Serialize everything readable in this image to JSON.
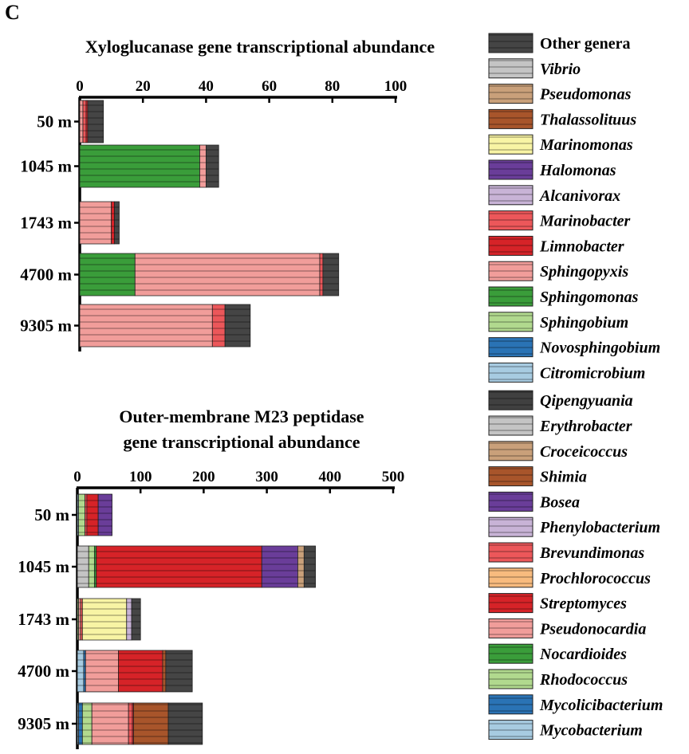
{
  "panel_label": "C",
  "chart_data": [
    {
      "type": "bar",
      "orientation": "horizontal",
      "stacked": true,
      "title": "Xyloglucanase gene transcriptional abundance",
      "title_lines": [
        "Xyloglucanase gene transcriptional abundance"
      ],
      "xlim": [
        0,
        100
      ],
      "xticks": [
        "0",
        "20",
        "40",
        "60",
        "80",
        "100"
      ],
      "xaxis_position": "top",
      "categories": [
        "50 m",
        "1045 m",
        "1743 m",
        "4700 m",
        "9305 m"
      ],
      "series": [
        {
          "name": "Sphingomonas",
          "values": [
            0,
            38,
            0,
            17.5,
            0
          ]
        },
        {
          "name": "Sphingopyxis",
          "values": [
            1,
            2,
            10,
            58.5,
            42
          ]
        },
        {
          "name": "Marinobacter",
          "values": [
            1,
            0,
            0,
            1,
            4
          ]
        },
        {
          "name": "Limnobacter",
          "values": [
            0.5,
            0,
            1,
            0,
            0
          ]
        },
        {
          "name": "Other genera",
          "values": [
            5,
            4,
            1.5,
            5,
            8
          ]
        }
      ]
    },
    {
      "type": "bar",
      "orientation": "horizontal",
      "stacked": true,
      "title": "Outer-membrane M23 peptidase gene transcriptional abundance",
      "title_lines": [
        "Outer-membrane M23 peptidase",
        "gene transcriptional abundance"
      ],
      "xlim": [
        0,
        500
      ],
      "xticks": [
        "0",
        "100",
        "200",
        "300",
        "400",
        "500"
      ],
      "xaxis_position": "top",
      "categories": [
        "50 m",
        "1045 m",
        "1743 m",
        "4700 m",
        "9305 m"
      ],
      "series": [
        {
          "name": "Mycobacterium",
          "values": [
            2,
            0,
            0,
            10,
            2
          ]
        },
        {
          "name": "Mycolicibacterium",
          "values": [
            0,
            0,
            0,
            3,
            6
          ]
        },
        {
          "name": "Erythrobacter",
          "values": [
            0,
            18,
            0,
            0,
            0
          ]
        },
        {
          "name": "Rhodococcus",
          "values": [
            10,
            9,
            2,
            0,
            15
          ]
        },
        {
          "name": "Nocardioides",
          "values": [
            0,
            3,
            0,
            0,
            0
          ]
        },
        {
          "name": "Pseudonocardia",
          "values": [
            0,
            0,
            3,
            52,
            58
          ]
        },
        {
          "name": "Brevundimonas",
          "values": [
            3,
            0,
            3,
            0,
            6
          ]
        },
        {
          "name": "Streptomyces",
          "values": [
            18,
            262,
            0,
            70,
            2
          ]
        },
        {
          "name": "Marinomonas",
          "values": [
            0,
            0,
            70,
            0,
            0
          ]
        },
        {
          "name": "Shimia",
          "values": [
            0,
            0,
            0,
            5,
            55
          ]
        },
        {
          "name": "Bosea",
          "values": [
            22,
            57,
            0,
            0,
            0
          ]
        },
        {
          "name": "Croceicoccus",
          "values": [
            0,
            10,
            0,
            0,
            0
          ]
        },
        {
          "name": "Phenylobacterium",
          "values": [
            0,
            0,
            8,
            0,
            0
          ]
        },
        {
          "name": "Other genera",
          "values": [
            0,
            18,
            14,
            42,
            54
          ]
        }
      ]
    }
  ],
  "legend": {
    "placement": "right",
    "items": [
      {
        "name": "Other genera",
        "color": "#454545",
        "italic": false
      },
      {
        "name": "Vibrio",
        "color": "#c4c4c4",
        "italic": true
      },
      {
        "name": "Pseudomonas",
        "color": "#c9a07a",
        "italic": true
      },
      {
        "name": "Thalassolituus",
        "color": "#a8552b",
        "italic": true
      },
      {
        "name": "Marinomonas",
        "color": "#f8f4a4",
        "italic": true
      },
      {
        "name": "Halomonas",
        "color": "#6a3d99",
        "italic": true
      },
      {
        "name": "Alcanivorax",
        "color": "#c8b3d6",
        "italic": true
      },
      {
        "name": "Marinobacter",
        "color": "#ec575a",
        "italic": true
      },
      {
        "name": "Limnobacter",
        "color": "#d62328",
        "italic": true
      },
      {
        "name": "Sphingopyxis",
        "color": "#f19d9a",
        "italic": true
      },
      {
        "name": "Sphingomonas",
        "color": "#3a9d3a",
        "italic": true
      },
      {
        "name": "Sphingobium",
        "color": "#b1d98e",
        "italic": true
      },
      {
        "name": "Novosphingobium",
        "color": "#2a73b5",
        "italic": true
      },
      {
        "name": "Citromicrobium",
        "color": "#a7cbe1",
        "italic": true
      },
      {
        "name": "Qipengyuania",
        "color": "#404040",
        "italic": true
      },
      {
        "name": "Erythrobacter",
        "color": "#c4c4c4",
        "italic": true
      },
      {
        "name": "Croceicoccus",
        "color": "#c9a07a",
        "italic": true
      },
      {
        "name": "Shimia",
        "color": "#a8552b",
        "italic": true
      },
      {
        "name": "Bosea",
        "color": "#6a3d99",
        "italic": true
      },
      {
        "name": "Phenylobacterium",
        "color": "#c8b3d6",
        "italic": true
      },
      {
        "name": "Brevundimonas",
        "color": "#ec575a",
        "italic": true
      },
      {
        "name": "Prochlorococcus",
        "color": "#f8bb7e",
        "italic": true
      },
      {
        "name": "Streptomyces",
        "color": "#d62328",
        "italic": true
      },
      {
        "name": "Pseudonocardia",
        "color": "#f19d9a",
        "italic": true
      },
      {
        "name": "Nocardioides",
        "color": "#3a9d3a",
        "italic": true
      },
      {
        "name": "Rhodococcus",
        "color": "#b1d98e",
        "italic": true
      },
      {
        "name": "Mycolicibacterium",
        "color": "#2a73b5",
        "italic": true
      },
      {
        "name": "Mycobacterium",
        "color": "#a7cbe1",
        "italic": true
      }
    ]
  }
}
